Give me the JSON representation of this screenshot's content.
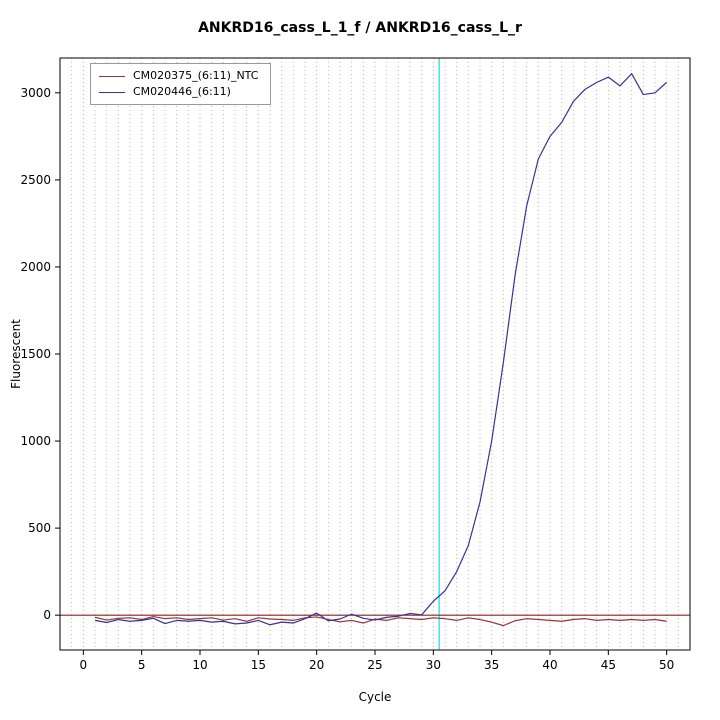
{
  "title": "ANKRD16_cass_L_1_f / ANKRD16_cass_L_r",
  "chart_data": {
    "type": "line",
    "title": "ANKRD16_cass_L_1_f / ANKRD16_cass_L_r",
    "xlabel": "Cycle",
    "ylabel": "Fluorescent",
    "xlim": [
      -2,
      52
    ],
    "ylim": [
      -200,
      3200
    ],
    "x_ticks": [
      0,
      5,
      10,
      15,
      20,
      25,
      30,
      35,
      40,
      45,
      50
    ],
    "y_ticks": [
      0,
      500,
      1000,
      1500,
      2000,
      2500,
      3000
    ],
    "grid": {
      "x_step": 1,
      "color": "#b8b8b8",
      "dash": "1,3"
    },
    "threshold_line": {
      "y": 0,
      "color": "#8b2020"
    },
    "ct_line": {
      "x": 30.5,
      "color": "#4de3ec"
    },
    "legend_position": "top-left",
    "x": [
      1,
      2,
      3,
      4,
      5,
      6,
      7,
      8,
      9,
      10,
      11,
      12,
      13,
      14,
      15,
      16,
      17,
      18,
      19,
      20,
      21,
      22,
      23,
      24,
      25,
      26,
      27,
      28,
      29,
      30,
      31,
      32,
      33,
      34,
      35,
      36,
      37,
      38,
      39,
      40,
      41,
      42,
      43,
      44,
      45,
      46,
      47,
      48,
      49,
      50
    ],
    "series": [
      {
        "name": "CM020375_(6:11)_NTC",
        "color": "#9c3333",
        "values": [
          -12,
          -28,
          -18,
          -15,
          -25,
          -8,
          -20,
          -15,
          -25,
          -20,
          -15,
          -28,
          -20,
          -35,
          -15,
          -22,
          -25,
          -30,
          -15,
          -10,
          -25,
          -38,
          -30,
          -45,
          -22,
          -30,
          -15,
          -20,
          -25,
          -15,
          -20,
          -30,
          -15,
          -25,
          -40,
          -60,
          -32,
          -20,
          -25,
          -30,
          -35,
          -25,
          -20,
          -30,
          -25,
          -30,
          -25,
          -30,
          -25,
          -35
        ]
      },
      {
        "name": "CM020446_(6:11)",
        "color": "#333399",
        "values": [
          -30,
          -42,
          -25,
          -35,
          -30,
          -18,
          -48,
          -30,
          -35,
          -30,
          -40,
          -35,
          -50,
          -45,
          -30,
          -55,
          -40,
          -45,
          -20,
          12,
          -32,
          -22,
          6,
          -18,
          -28,
          -12,
          -6,
          10,
          2,
          80,
          140,
          250,
          400,
          650,
          1000,
          1450,
          1950,
          2350,
          2620,
          2750,
          2830,
          2950,
          3020,
          3060,
          3090,
          3040,
          3110,
          2990,
          3000,
          3060
        ]
      }
    ]
  }
}
